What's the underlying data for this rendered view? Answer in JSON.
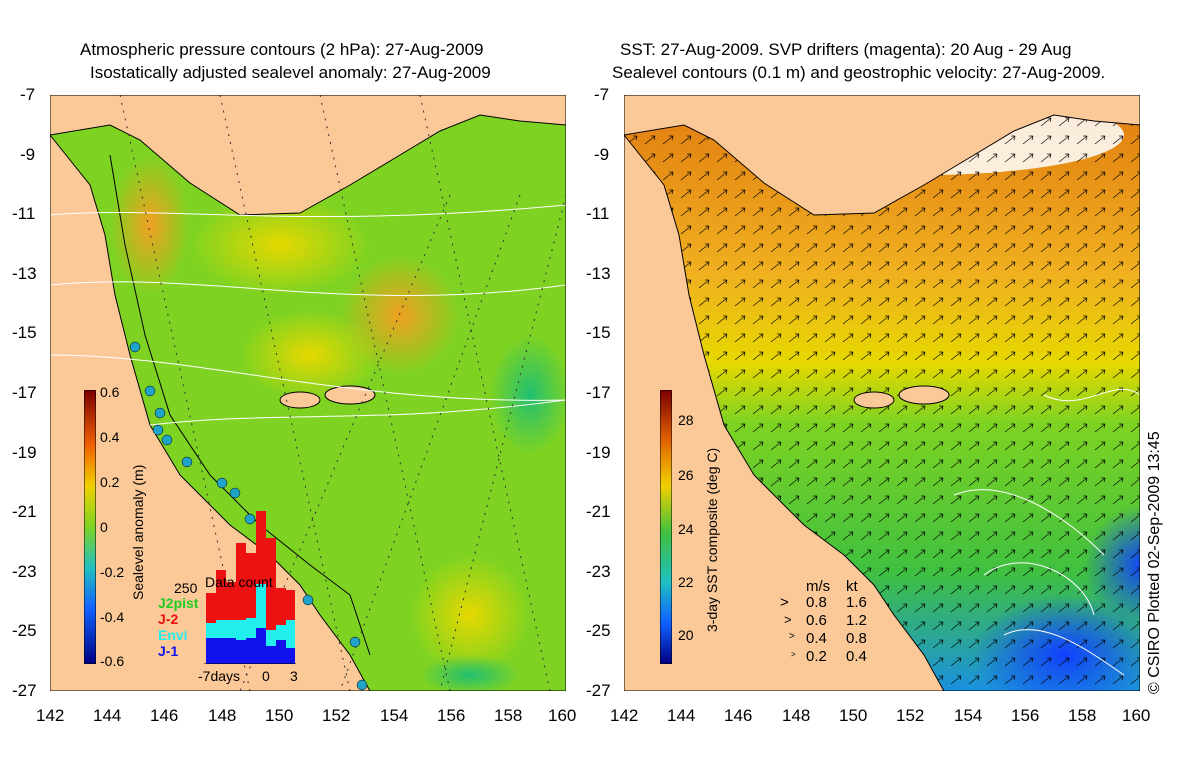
{
  "left_panel": {
    "title_line1": "Atmospheric pressure contours (2 hPa): 27-Aug-2009",
    "title_line2": "Isostatically adjusted sealevel anomaly: 27-Aug-2009",
    "y_ticks": [
      "-7",
      "-9",
      "-11",
      "-13",
      "-15",
      "-17",
      "-19",
      "-21",
      "-23",
      "-25",
      "-27"
    ],
    "x_ticks": [
      "142",
      "144",
      "146",
      "148",
      "150",
      "152",
      "154",
      "156",
      "158",
      "160"
    ],
    "colorbar_label": "Sealevel anomaly (m)",
    "colorbar_ticks": [
      "0.6",
      "0.4",
      "0.2",
      "0",
      "-0.2",
      "-0.4",
      "-0.6"
    ],
    "inset": {
      "max_label": "250",
      "title": "Data count",
      "legend": [
        {
          "label": "J2pist",
          "color": "#22cc22"
        },
        {
          "label": "J-2",
          "color": "#ee1111"
        },
        {
          "label": "Envi",
          "color": "#22eeee"
        },
        {
          "label": "J-1",
          "color": "#1111ee"
        }
      ],
      "x_labels": [
        "-7days",
        "0",
        "3"
      ]
    }
  },
  "right_panel": {
    "title_line1": "SST: 27-Aug-2009. SVP drifters (magenta): 20 Aug - 29 Aug",
    "title_line2": "Sealevel contours (0.1 m) and geostrophic velocity: 27-Aug-2009.",
    "y_ticks": [
      "-7",
      "-9",
      "-11",
      "-13",
      "-15",
      "-17",
      "-19",
      "-21",
      "-23",
      "-25",
      "-27"
    ],
    "x_ticks": [
      "142",
      "144",
      "146",
      "148",
      "150",
      "152",
      "154",
      "156",
      "158",
      "160"
    ],
    "colorbar_label": "3-day SST composite (deg C)",
    "colorbar_ticks": [
      "28",
      "26",
      "24",
      "22",
      "20"
    ],
    "speed_legend": {
      "headers": [
        "m/s",
        "kt"
      ],
      "rows": [
        {
          "ms": "0.8",
          "kt": "1.6"
        },
        {
          "ms": "0.6",
          "kt": "1.2"
        },
        {
          "ms": "0.4",
          "kt": "0.8"
        },
        {
          "ms": "0.2",
          "kt": "0.4"
        }
      ]
    }
  },
  "credit": "© CSIRO Plotted 02-Sep-2009 13:45",
  "colors": {
    "land": "#fbc998",
    "ocean_green": "#7ed322",
    "ocean_yellow": "#e6d800",
    "ocean_orange": "#f0a020"
  }
}
